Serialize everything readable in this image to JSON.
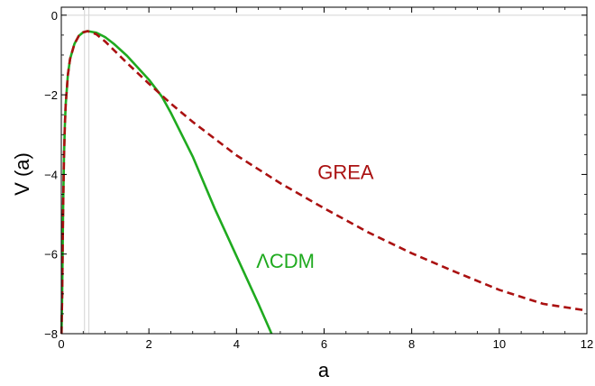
{
  "chart_data": {
    "type": "line",
    "title": "",
    "xlabel": "a",
    "ylabel": "V (a)",
    "xlim": [
      0,
      12
    ],
    "ylim": [
      -8,
      0.2
    ],
    "x_ticks": [
      0,
      2,
      4,
      6,
      8,
      10,
      12
    ],
    "y_ticks": [
      0,
      -2,
      -4,
      -6,
      -8
    ],
    "x_tick_labels": [
      "0",
      "2",
      "4",
      "6",
      "8",
      "10",
      "12"
    ],
    "y_tick_labels": [
      "0",
      "−2",
      "−4",
      "−6",
      "−8"
    ],
    "grid": false,
    "reference_lines_x": [
      0.53,
      0.63
    ],
    "series": [
      {
        "name": "ΛCDM",
        "color": "#1faa1f",
        "dash": "solid",
        "x": [
          0.005,
          0.02,
          0.04,
          0.06,
          0.08,
          0.1,
          0.15,
          0.2,
          0.3,
          0.4,
          0.5,
          0.6,
          0.8,
          1.0,
          1.2,
          1.5,
          2.0,
          2.3,
          2.5,
          3.0,
          3.5,
          4.0,
          4.5,
          4.8
        ],
        "y": [
          -8.0,
          -7.0,
          -5.0,
          -3.6,
          -2.8,
          -2.25,
          -1.5,
          -1.1,
          -0.72,
          -0.52,
          -0.43,
          -0.4,
          -0.44,
          -0.55,
          -0.72,
          -1.02,
          -1.62,
          -2.05,
          -2.45,
          -3.55,
          -4.85,
          -6.05,
          -7.25,
          -8.0
        ]
      },
      {
        "name": "GREA",
        "color": "#aa1111",
        "dash": "dashed",
        "x": [
          0.005,
          0.02,
          0.04,
          0.06,
          0.08,
          0.1,
          0.15,
          0.2,
          0.3,
          0.4,
          0.5,
          0.6,
          0.8,
          1.0,
          1.5,
          2.0,
          2.5,
          3.0,
          4.0,
          5.0,
          6.0,
          7.0,
          8.0,
          9.0,
          10.0,
          11.0,
          12.0
        ],
        "y": [
          -8.0,
          -7.0,
          -5.0,
          -3.6,
          -2.8,
          -2.25,
          -1.5,
          -1.1,
          -0.72,
          -0.52,
          -0.43,
          -0.4,
          -0.48,
          -0.66,
          -1.2,
          -1.72,
          -2.22,
          -2.68,
          -3.52,
          -4.22,
          -4.85,
          -5.45,
          -5.98,
          -6.45,
          -6.9,
          -7.25,
          -7.42
        ]
      }
    ],
    "annotations": [
      {
        "text": "GREA",
        "x": 5.85,
        "y": -4.12,
        "color": "#aa1111"
      },
      {
        "text": "ΛCDM",
        "x": 4.45,
        "y": -6.35,
        "color": "#1faa1f"
      }
    ]
  }
}
